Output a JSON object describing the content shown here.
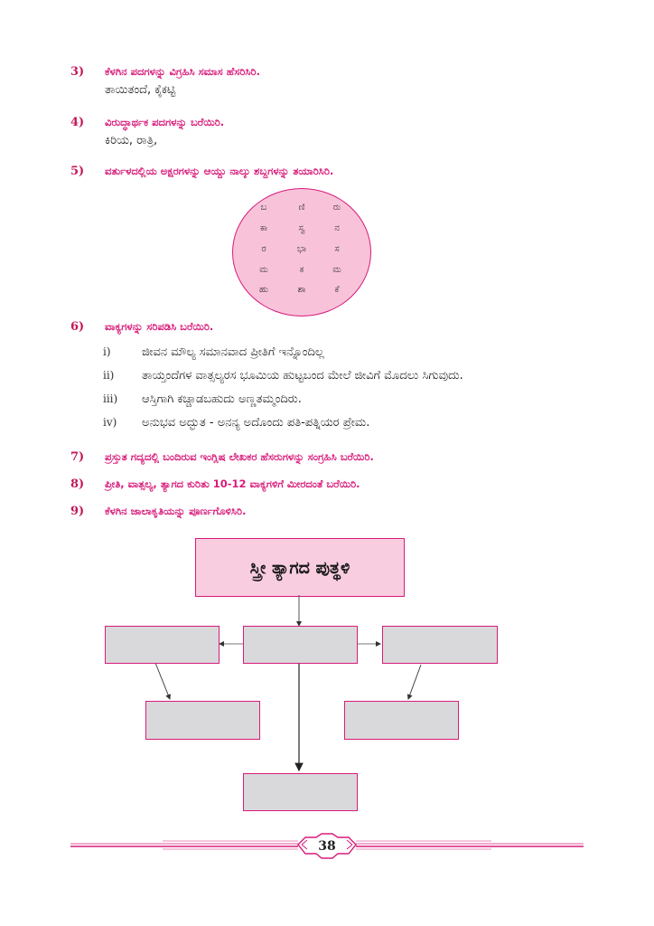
{
  "questions": [
    {
      "num": "3)",
      "text": "ಕೆಳಗಿನ ಪದಗಳನ್ನು ವಿಗ್ರಹಿಸಿ ಸಮಾಸ ಹೆಸರಿಸಿರಿ.",
      "answer": "ತಾಯಿತಂದೆ, ಕೈಕಟ್ಟಿ"
    },
    {
      "num": "4)",
      "text": "ವಿರುದ್ಧಾರ್ಥಕ ಪದಗಳನ್ನು ಬರೆಯಿರಿ.",
      "answer": "ಕಿರಿಯ, ರಾತ್ರಿ,"
    },
    {
      "num": "5)",
      "text": "ವರ್ತುಳದಲ್ಲಿಯ ಅಕ್ಷರಗಳನ್ನು ಆಯ್ದು ನಾಲ್ಕು ಶಬ್ದಗಳನ್ನು ತಯಾರಿಸಿರಿ."
    },
    {
      "num": "6)",
      "text": "ವಾಕ್ಯಗಳನ್ನು ಸರಿಪಡಿಸಿ ಬರೆಯಿರಿ."
    },
    {
      "num": "7)",
      "text": "ಪ್ರಸ್ತುತ ಗದ್ಯದಲ್ಲಿ ಬಂದಿರುವ ಇಂಗ್ಲಿಷ ಲೇಖಕರ ಹೆಸರುಗಳನ್ನು ಸಂಗ್ರಹಿಸಿ ಬರೆಯಿರಿ."
    },
    {
      "num": "8)",
      "text": "ಪ್ರೀತಿ, ವಾತ್ಸಲ್ಯ, ತ್ಯಾಗದ ಕುರಿತು 10-12 ವಾಕ್ಯಗಳಿಗೆ ಮೀರದಂತೆ ಬರೆಯಿರಿ."
    },
    {
      "num": "9)",
      "text": "ಕೆಳಗಿನ ಜಾಲಾಕೃತಿಯನ್ನು ಪೂರ್ಣಗೊಳಿಸಿರಿ."
    }
  ],
  "circle_grid": [
    [
      "ಬ",
      "ಣಿ",
      "ರು"
    ],
    [
      "ಕಾ",
      "ಸ್ವ",
      "ನ"
    ],
    [
      "ರ",
      "ಭಾ",
      "ಸ"
    ],
    [
      "ಮ",
      "ಕ",
      "ಮ"
    ],
    [
      "ಹು",
      "ಶಾ",
      "ಕೆ"
    ]
  ],
  "sentences": [
    {
      "num": "i)",
      "text": "ಜೀವನ ಮೌಲ್ಯ ಸಮಾನವಾದ ಪ್ರೀತಿಗೆ ಇನ್ನೊಂದಿಲ್ಲ"
    },
    {
      "num": "ii)",
      "text": "ತಾಯ್ತಂದೆಗಳ ವಾತ್ಸಲ್ಯರಸ ಭೂಮಿಯ ಹುಟ್ಟಬಂದ ಮೇಲೆ ಜೀವಿಗೆ ಮೊದಲು ಸಿಗುವುದು."
    },
    {
      "num": "iii)",
      "text": "ಆಸ್ತಿಗಾಗಿ ಕಚ್ಚಾಡಬಹುದು ಅಣ್ಣತಮ್ಮಂದಿರು."
    },
    {
      "num": "iv)",
      "text": "ಅನುಭವ ಅದ್ಭುತ - ಅನನ್ಯ ಅದೊಂದು ಪತಿ-ಪತ್ನಿಯರ ಪ್ರೇಮ."
    }
  ],
  "chart_title": "ಸ್ತ್ರೀ ತ್ಯಾಗದ ಪುತ್ಥಳಿ",
  "page_number": "38",
  "colors": {
    "accent": "#d81b7a",
    "box_fill": "#d9d9db",
    "title_fill": "#f9cde0"
  }
}
